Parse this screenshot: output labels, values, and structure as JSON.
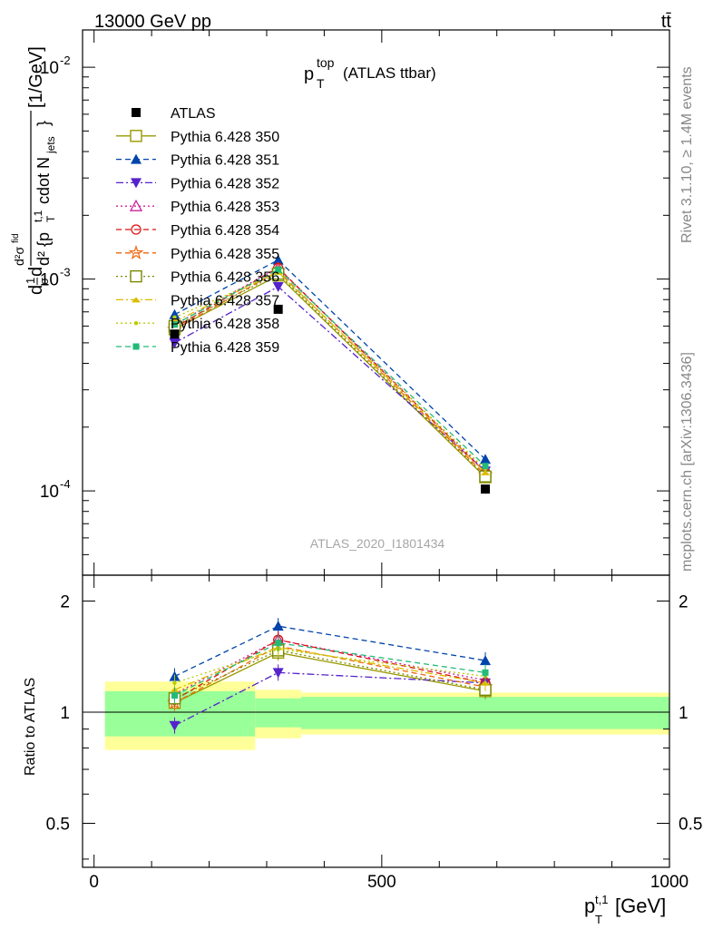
{
  "header": {
    "energy_label": "13000 GeV pp",
    "process_label": "tt̄",
    "plot_title_main": "p",
    "plot_title_sup": "top",
    "plot_title_sub": "T",
    "plot_title_rest": "(ATLAS ttbar)",
    "analysis_id": "ATLAS_2020_I1801434",
    "side_rivet": "Rivet 3.1.10, ≥ 1.4M events",
    "side_mcplots": "mcplots.cern.ch [arXiv:1306.3436]"
  },
  "ylabel_main": "d²σ/d²{p_T^{t,1} cdot N_jets} [1/GeV]",
  "ylabel_ratio": "Ratio to ATLAS",
  "xlabel": "p_T^{t,1} [GeV]",
  "colors": {
    "data": "#000000",
    "band_inner": "#99ff99",
    "band_outer": "#ffff99",
    "s350": "#999900",
    "s351": "#0044aa",
    "s352": "#5522cc",
    "s353": "#cc2299",
    "s354": "#dd1111",
    "s355": "#ee6611",
    "s356": "#778800",
    "s357": "#ddbb00",
    "s358": "#bbcc00",
    "s359": "#22bb77"
  },
  "chart_data": [
    {
      "type": "line",
      "title": "p_T^top (ATLAS ttbar)",
      "xlabel": "p_T^{t,1} [GeV]",
      "ylabel": "d²σ/d²{p_T^{t,1} cdot N_jets} [1/GeV]",
      "xlim": [
        -20,
        1000
      ],
      "ylim": [
        4e-05,
        0.015
      ],
      "yscale": "log",
      "x_ticks": [
        "0",
        "500",
        "1000"
      ],
      "y_ticks": [
        "10^-4",
        "10^-3",
        "10^-2"
      ],
      "legend_position": "top-left",
      "bins": [
        [
          0,
          280
        ],
        [
          280,
          360
        ],
        [
          360,
          1000
        ]
      ],
      "x": [
        140,
        320,
        680
      ],
      "data": {
        "name": "ATLAS",
        "values": [
          0.00055,
          0.00072,
          0.000102
        ],
        "rel_err_inner": [
          0.14,
          0.09,
          0.1
        ],
        "rel_err_outer": [
          0.21,
          0.15,
          0.13
        ]
      },
      "series": [
        {
          "name": "Pythia 6.428 350",
          "marker": "open-square",
          "dash": "solid",
          "values": [
            0.00058,
            0.00104,
            0.000116
          ]
        },
        {
          "name": "Pythia 6.428 351",
          "marker": "filled-triangle-up",
          "dash": "dashed",
          "values": [
            0.00068,
            0.00123,
            0.000141
          ]
        },
        {
          "name": "Pythia 6.428 352",
          "marker": "filled-triangle-down",
          "dash": "dashdot",
          "values": [
            0.0005,
            0.00092,
            0.000124
          ]
        },
        {
          "name": "Pythia 6.428 353",
          "marker": "open-triangle-up",
          "dash": "dotted",
          "values": [
            0.00061,
            0.00113,
            0.000124
          ]
        },
        {
          "name": "Pythia 6.428 354",
          "marker": "open-circle",
          "dash": "dashed",
          "values": [
            0.00059,
            0.00113,
            0.000122
          ]
        },
        {
          "name": "Pythia 6.428 355",
          "marker": "open-star",
          "dash": "dashed",
          "values": [
            0.00058,
            0.00109,
            0.000119
          ]
        },
        {
          "name": "Pythia 6.428 356",
          "marker": "open-square",
          "dash": "dotted",
          "values": [
            0.0006,
            0.00106,
            0.000117
          ]
        },
        {
          "name": "Pythia 6.428 357",
          "marker": "dash-tri",
          "dash": "dashdot",
          "values": [
            0.00063,
            0.00108,
            0.000122
          ]
        },
        {
          "name": "Pythia 6.428 358",
          "marker": "small-dot",
          "dash": "dotted",
          "values": [
            0.00066,
            0.00107,
            0.000127
          ]
        },
        {
          "name": "Pythia 6.428 359",
          "marker": "filled-square",
          "dash": "dashed",
          "values": [
            0.00061,
            0.00111,
            0.000131
          ]
        }
      ]
    },
    {
      "type": "line",
      "title": "",
      "xlabel": "p_T^{t,1} [GeV]",
      "ylabel": "Ratio to ATLAS",
      "xlim": [
        -20,
        1000
      ],
      "ylim": [
        0.38,
        2.35
      ],
      "yscale": "log",
      "y_ticks": [
        "0.5",
        "1",
        "2"
      ],
      "x": [
        140,
        320,
        680
      ],
      "series": [
        {
          "name": "Pythia 6.428 350",
          "values": [
            1.06,
            1.45,
            1.14
          ]
        },
        {
          "name": "Pythia 6.428 351",
          "values": [
            1.25,
            1.71,
            1.38
          ]
        },
        {
          "name": "Pythia 6.428 352",
          "values": [
            0.92,
            1.28,
            1.2
          ]
        },
        {
          "name": "Pythia 6.428 353",
          "values": [
            1.12,
            1.57,
            1.22
          ]
        },
        {
          "name": "Pythia 6.428 354",
          "values": [
            1.08,
            1.57,
            1.2
          ]
        },
        {
          "name": "Pythia 6.428 355",
          "values": [
            1.06,
            1.51,
            1.17
          ]
        },
        {
          "name": "Pythia 6.428 356",
          "values": [
            1.09,
            1.47,
            1.15
          ]
        },
        {
          "name": "Pythia 6.428 357",
          "values": [
            1.15,
            1.5,
            1.2
          ]
        },
        {
          "name": "Pythia 6.428 358",
          "values": [
            1.2,
            1.48,
            1.25
          ]
        },
        {
          "name": "Pythia 6.428 359",
          "values": [
            1.11,
            1.54,
            1.28
          ]
        }
      ]
    }
  ]
}
